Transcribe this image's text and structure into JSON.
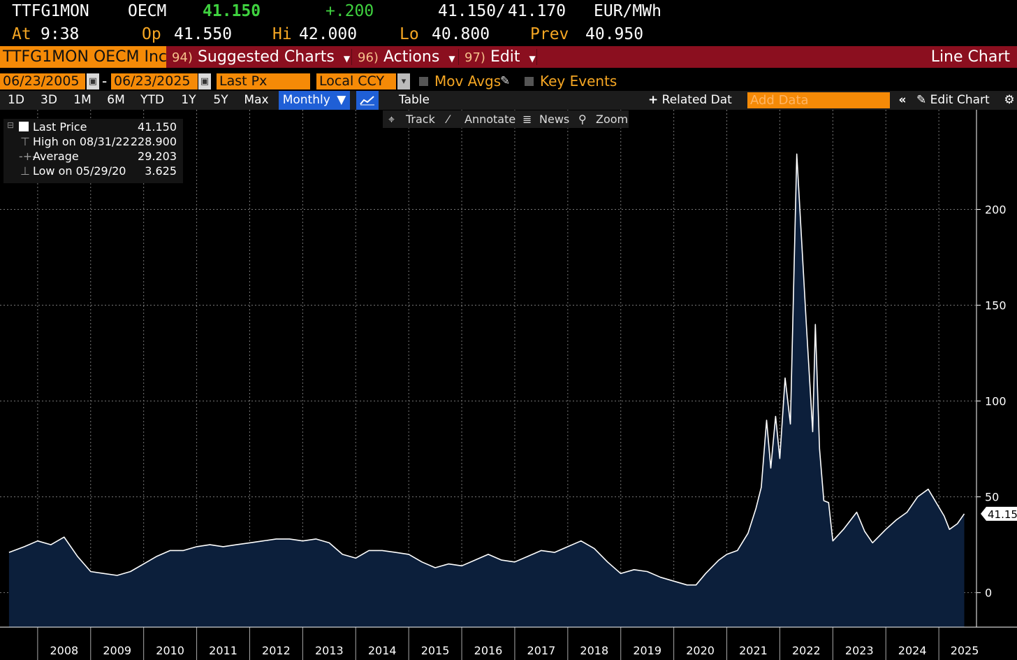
{
  "quote": {
    "ticker": "TTFG1MON",
    "source": "OECM",
    "last": "41.150",
    "change": "+.200",
    "bid": "41.150",
    "ask": "41.170",
    "bid_ask_sep": "/",
    "unit": "EUR/MWh",
    "at_label": "At",
    "time": "9:38",
    "open_label": "Op",
    "open": "41.550",
    "high_label": "Hi",
    "high": "42.000",
    "low_label": "Lo",
    "low": "40.800",
    "prev_label": "Prev",
    "prev": "40.950"
  },
  "menubar": {
    "security": "TTFG1MON OECM Inc",
    "suggested_num": "94)",
    "suggested": "Suggested Charts",
    "actions_num": "96)",
    "actions": "Actions",
    "edit_num": "97)",
    "edit": "Edit",
    "chart_type": "Line Chart"
  },
  "controls": {
    "start_date": "06/23/2005",
    "date_sep": "-",
    "end_date": "06/23/2025",
    "field": "Last Px",
    "currency": "Local CCY",
    "mov_avgs": "Mov Avgs",
    "key_events": "Key Events"
  },
  "periods": [
    "1D",
    "3D",
    "1M",
    "6M",
    "YTD",
    "1Y",
    "5Y",
    "Max"
  ],
  "periodicity": "Monthly",
  "table_label": "Table",
  "related_data": "Related Dat",
  "add_data_placeholder": "Add Data",
  "edit_chart": "Edit Chart",
  "tools": {
    "track": "Track",
    "annotate": "Annotate",
    "news": "News",
    "zoom": "Zoom"
  },
  "legend": {
    "last_label": "Last Price",
    "last_value": "41.150",
    "high_label": "High on 08/31/22",
    "high_value": "228.900",
    "avg_label": "Average",
    "avg_value": "29.203",
    "low_label": "Low on 05/29/20",
    "low_value": "3.625"
  },
  "colors": {
    "accent_orange": "#f58a07",
    "menu_red": "#8b0f1f",
    "selected_blue": "#1f5fd6",
    "area_fill": "#0c1f3b",
    "line": "#ffffff",
    "change_green": "#3fd13f"
  },
  "chart_data": {
    "type": "area",
    "title": "",
    "xlabel": "",
    "ylabel": "",
    "ylim": [
      -18,
      252
    ],
    "y_ticks": [
      0,
      50,
      100,
      150,
      200
    ],
    "x_ticks": [
      "2008",
      "2009",
      "2010",
      "2011",
      "2012",
      "2013",
      "2014",
      "2015",
      "2016",
      "2017",
      "2018",
      "2019",
      "2020",
      "2021",
      "2022",
      "2023",
      "2024",
      "2025"
    ],
    "grid": true,
    "last_value_label": "41.150",
    "series": [
      {
        "x": [
          2007.46,
          2007.75,
          2008.0,
          2008.25,
          2008.5,
          2008.75,
          2009.0,
          2009.25,
          2009.5,
          2009.75,
          2010.0,
          2010.25,
          2010.5,
          2010.75,
          2011.0,
          2011.25,
          2011.5,
          2011.75,
          2012.0,
          2012.25,
          2012.5,
          2012.75,
          2013.0,
          2013.25,
          2013.5,
          2013.75,
          2014.0,
          2014.25,
          2014.5,
          2014.75,
          2015.0,
          2015.25,
          2015.5,
          2015.75,
          2016.0,
          2016.25,
          2016.5,
          2016.75,
          2017.0,
          2017.25,
          2017.5,
          2017.75,
          2018.0,
          2018.25,
          2018.5,
          2018.75,
          2019.0,
          2019.25,
          2019.5,
          2019.75,
          2020.0,
          2020.25,
          2020.42,
          2020.6,
          2020.85,
          2021.0,
          2021.2,
          2021.4,
          2021.55,
          2021.65,
          2021.75,
          2021.83,
          2021.92,
          2022.0,
          2022.1,
          2022.2,
          2022.32,
          2022.5,
          2022.62,
          2022.67,
          2022.75,
          2022.83,
          2022.92,
          2023.0,
          2023.2,
          2023.45,
          2023.6,
          2023.75,
          2024.0,
          2024.2,
          2024.4,
          2024.6,
          2024.8,
          2024.95,
          2025.1,
          2025.2,
          2025.35,
          2025.48
        ],
        "values": [
          21,
          24,
          27,
          25,
          29,
          19,
          11,
          10,
          9,
          11,
          15,
          19,
          22,
          22,
          24,
          25,
          24,
          25,
          26,
          27,
          28,
          28,
          27,
          28,
          26,
          20,
          18,
          22,
          22,
          21,
          20,
          16,
          13,
          15,
          14,
          17,
          20,
          17,
          16,
          19,
          22,
          21,
          24,
          27,
          23,
          16,
          10,
          12,
          11,
          8,
          6,
          4,
          4,
          10,
          17,
          20,
          22,
          31,
          44,
          55,
          90,
          65,
          92,
          70,
          112,
          88,
          228.9,
          140,
          84,
          140,
          75,
          48,
          47,
          27,
          33,
          42,
          32,
          26,
          33,
          38,
          42,
          50,
          54,
          47,
          40,
          33,
          36,
          41.15
        ]
      }
    ]
  }
}
